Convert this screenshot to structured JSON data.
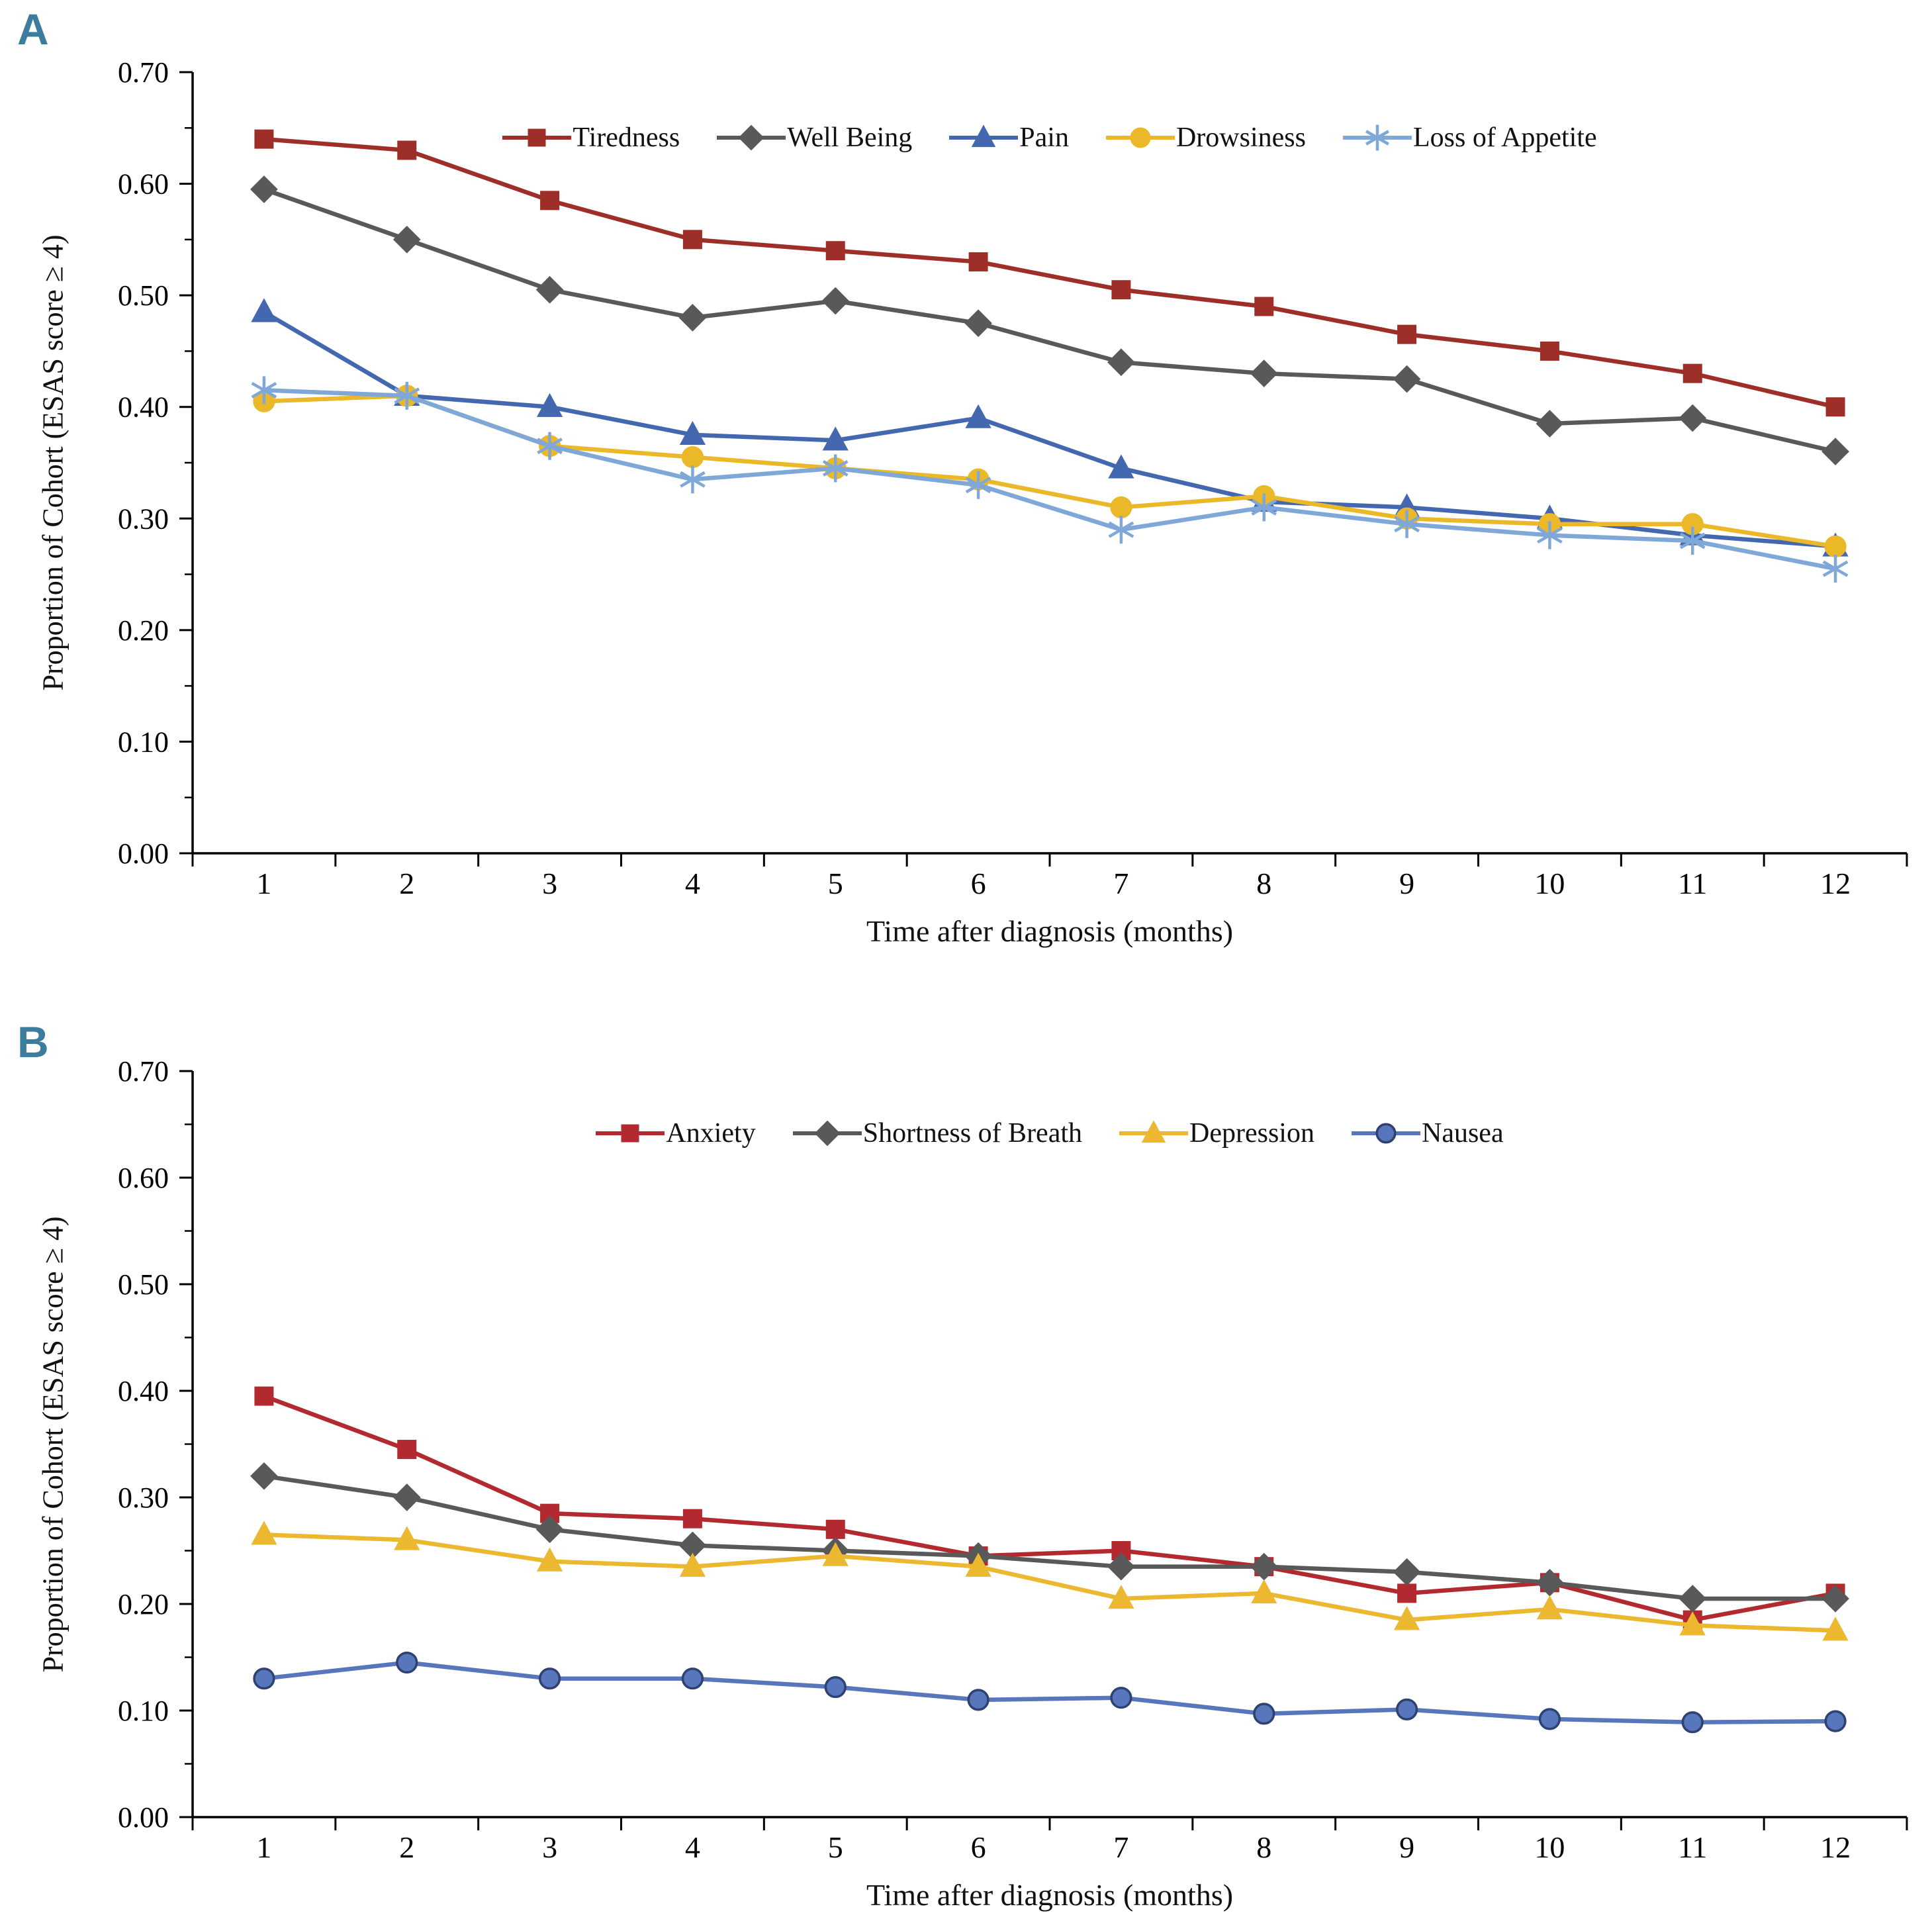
{
  "colors": {
    "panel_label": "#3c7c9c",
    "axis": "#000000",
    "background": "#ffffff"
  },
  "chart_data": [
    {
      "type": "line",
      "panel_label": "A",
      "xlabel": "Time after diagnosis (months)",
      "ylabel": "Proportion of Cohort (ESAS  score ≥ 4)",
      "x": [
        "1",
        "2",
        "3",
        "4",
        "5",
        "6",
        "7",
        "8",
        "9",
        "10",
        "11",
        "12"
      ],
      "ylim": [
        0.0,
        0.7
      ],
      "ytick_step": 0.1,
      "ytick_minor_step": 0.05,
      "grid": false,
      "legend_position": "top-inside",
      "series": [
        {
          "name": "Tiredness",
          "marker": "square",
          "color": "#9e2f28",
          "values": [
            0.64,
            0.63,
            0.585,
            0.55,
            0.54,
            0.53,
            0.505,
            0.49,
            0.465,
            0.45,
            0.43,
            0.4
          ]
        },
        {
          "name": "Well Being",
          "marker": "diamond",
          "color": "#595959",
          "values": [
            0.595,
            0.55,
            0.505,
            0.48,
            0.495,
            0.475,
            0.44,
            0.43,
            0.425,
            0.385,
            0.39,
            0.36
          ]
        },
        {
          "name": "Pain",
          "marker": "triangle",
          "color": "#4468b0",
          "values": [
            0.485,
            0.41,
            0.4,
            0.375,
            0.37,
            0.39,
            0.345,
            0.315,
            0.31,
            0.3,
            0.285,
            0.275
          ]
        },
        {
          "name": "Drowsiness",
          "marker": "circle",
          "color": "#eab829",
          "values": [
            0.405,
            0.41,
            0.365,
            0.355,
            0.345,
            0.335,
            0.31,
            0.32,
            0.3,
            0.295,
            0.295,
            0.275
          ]
        },
        {
          "name": "Loss of Appetite",
          "marker": "star",
          "color": "#7fa8d9",
          "values": [
            0.415,
            0.41,
            0.365,
            0.335,
            0.345,
            0.33,
            0.29,
            0.31,
            0.295,
            0.285,
            0.28,
            0.255
          ]
        }
      ]
    },
    {
      "type": "line",
      "panel_label": "B",
      "xlabel": "Time after diagnosis (months)",
      "ylabel": "Proportion of Cohort (ESAS  score ≥ 4)",
      "x": [
        "1",
        "2",
        "3",
        "4",
        "5",
        "6",
        "7",
        "8",
        "9",
        "10",
        "11",
        "12"
      ],
      "ylim": [
        0.0,
        0.7
      ],
      "ytick_step": 0.1,
      "ytick_minor_step": 0.05,
      "grid": false,
      "legend_position": "top-inside",
      "series": [
        {
          "name": "Anxiety",
          "marker": "square",
          "color": "#b22a2f",
          "values": [
            0.395,
            0.345,
            0.285,
            0.28,
            0.27,
            0.245,
            0.25,
            0.235,
            0.21,
            0.22,
            0.185,
            0.21
          ]
        },
        {
          "name": "Shortness of Breath",
          "marker": "diamond",
          "color": "#595959",
          "values": [
            0.32,
            0.3,
            0.27,
            0.255,
            0.25,
            0.245,
            0.235,
            0.235,
            0.23,
            0.22,
            0.205,
            0.205
          ]
        },
        {
          "name": "Depression",
          "marker": "triangle",
          "color": "#ecb82f",
          "values": [
            0.265,
            0.26,
            0.24,
            0.235,
            0.245,
            0.235,
            0.205,
            0.21,
            0.185,
            0.195,
            0.18,
            0.175
          ]
        },
        {
          "name": "Nausea",
          "marker": "circle",
          "color": "#5776bb",
          "marker_stroke": "#2e4170",
          "values": [
            0.13,
            0.145,
            0.13,
            0.13,
            0.122,
            0.11,
            0.112,
            0.097,
            0.101,
            0.092,
            0.089,
            0.09
          ]
        }
      ]
    }
  ]
}
